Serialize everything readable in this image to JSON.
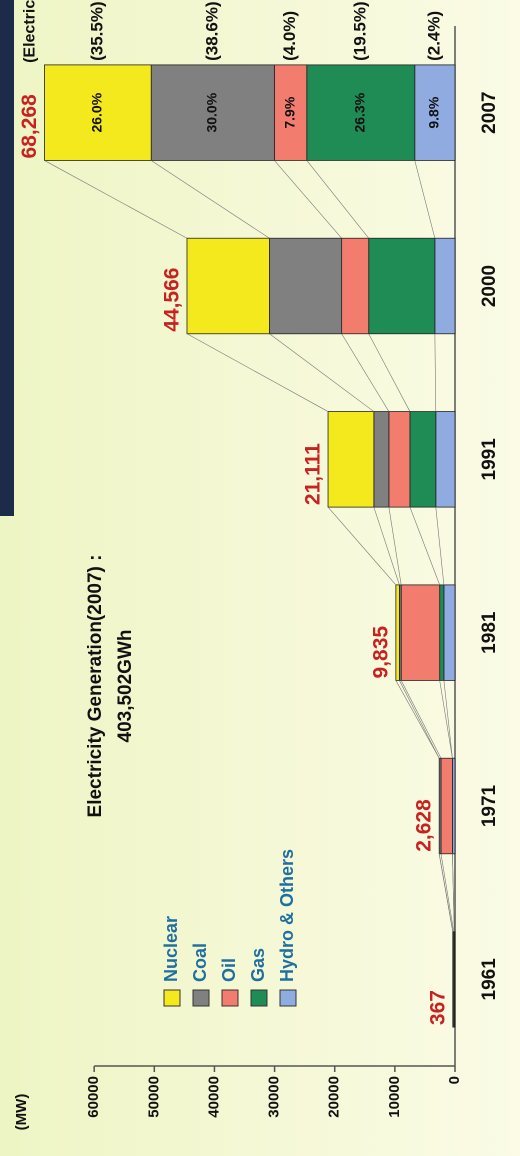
{
  "chart_data": {
    "type": "stacked_bar",
    "title": "Electricity Generation(2007) :",
    "subtitle": "403,502GWh",
    "y_label": "(MW)",
    "categories": [
      "1961",
      "1971",
      "1981",
      "1991",
      "2000",
      "2007"
    ],
    "series": [
      {
        "name": "Nuclear",
        "color": "#f3e91c",
        "values": [
          0,
          0,
          587,
          7616,
          13716,
          17750
        ]
      },
      {
        "name": "Coal",
        "color": "#808080",
        "values": [
          150,
          300,
          300,
          2500,
          12000,
          20480
        ]
      },
      {
        "name": "Oil",
        "color": "#f27d6e",
        "values": [
          100,
          1900,
          6400,
          3500,
          4500,
          5393
        ]
      },
      {
        "name": "Gas",
        "color": "#1f8b55",
        "values": [
          0,
          0,
          700,
          4300,
          11000,
          17954
        ]
      },
      {
        "name": "Hydro & Others",
        "color": "#8fabe0",
        "values": [
          117,
          428,
          1848,
          3195,
          3350,
          6691
        ]
      }
    ],
    "totals": [
      367,
      2628,
      9835,
      21111,
      44566,
      68268
    ],
    "total_labels": [
      "367",
      "2,628",
      "9,835",
      "21,111",
      "44,566",
      "68,268"
    ],
    "share_labels": [
      "26.0%",
      "30.0%",
      "7.9%",
      "26.3%",
      "9.8%"
    ],
    "generation_header": "(Electricity)",
    "generation_share_labels": [
      "(35.5%)",
      "(38.6%)",
      "(4.0%)",
      "(19.5%)",
      "(2.4%)"
    ],
    "ylim": [
      0,
      72000
    ],
    "yticks": [
      0,
      10000,
      20000,
      30000,
      40000,
      50000,
      60000
    ]
  }
}
